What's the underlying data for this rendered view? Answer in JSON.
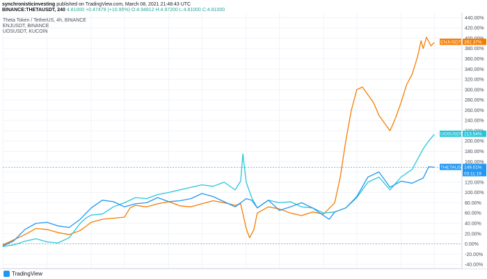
{
  "header": {
    "publisher": "synchronisticinvesting",
    "publish_line": "published on TradingView.com, March 08, 2021 21:48:43 UTC",
    "symbol_line": "BINANCE:THETAUSDT, 240",
    "last": "4.81000",
    "change": "+0.47479 (+10.95%)",
    "ohlc": "O:4.94812 H:4.97200 L:4.81000 C:4.81000"
  },
  "legend": {
    "main": "Theta Token / TetherUS, 4h, BINANCE",
    "line2": "ENJUSDT, BINANCE",
    "line3": "UOSUSDT, KUCOIN"
  },
  "footer": {
    "brand": "TradingView"
  },
  "colors": {
    "theta": "#2196f3",
    "enj": "#f57c00",
    "uos": "#26c6da",
    "zero": "#9598a1",
    "grid": "#f0f3fa"
  },
  "chart_data": {
    "type": "line",
    "x_labels": [
      "Feb",
      "4",
      "8",
      "11",
      "15",
      "18",
      "22",
      "25",
      "Mar",
      "4",
      "8",
      "11"
    ],
    "x_label_pos": [
      0,
      4,
      8,
      11,
      15,
      18,
      22,
      25,
      29,
      32,
      36,
      39
    ],
    "y_ticks": [
      "-40.00%",
      "-20.00%",
      "0.00%",
      "20.00%",
      "40.00%",
      "60.00%",
      "80.00%",
      "100.00%",
      "120.00%",
      "140.00%",
      "160.00%",
      "180.00%",
      "200.00%",
      "220.00%",
      "240.00%",
      "260.00%",
      "280.00%",
      "300.00%",
      "320.00%",
      "340.00%",
      "360.00%",
      "380.00%",
      "400.00%",
      "420.00%",
      "440.00%"
    ],
    "y_tick_values": [
      -40,
      -20,
      0,
      20,
      40,
      60,
      80,
      100,
      120,
      140,
      160,
      180,
      200,
      220,
      240,
      260,
      280,
      300,
      320,
      340,
      360,
      380,
      400,
      420,
      440
    ],
    "ylim": [
      -48,
      450
    ],
    "xlim": [
      0,
      41.5
    ],
    "series": [
      {
        "name": "ENJUSDT",
        "label": "392.37%",
        "last": 392.37,
        "x": [
          0,
          1,
          2,
          3,
          4,
          5,
          6,
          7,
          8,
          9,
          10,
          11,
          11.5,
          12,
          13,
          14,
          15,
          16,
          17,
          18,
          19,
          20,
          21,
          21.5,
          22,
          22.3,
          22.7,
          23,
          24,
          25,
          26,
          27,
          28,
          29,
          30,
          30.5,
          31,
          31.5,
          32,
          32.5,
          33,
          33.5,
          34,
          35,
          35.5,
          36,
          36.5,
          37,
          37.5,
          37.8,
          38,
          38.3,
          38.7,
          39
        ],
        "y": [
          -2,
          8,
          18,
          30,
          28,
          22,
          18,
          26,
          42,
          48,
          50,
          52,
          70,
          75,
          72,
          78,
          82,
          74,
          72,
          78,
          84,
          80,
          75,
          78,
          30,
          12,
          28,
          60,
          72,
          68,
          60,
          55,
          62,
          58,
          80,
          130,
          200,
          260,
          300,
          305,
          290,
          275,
          250,
          220,
          245,
          275,
          310,
          330,
          365,
          395,
          380,
          402,
          385,
          392
        ]
      },
      {
        "name": "UOSUSDT",
        "label": "213.54%",
        "last": 213.54,
        "x": [
          0,
          1,
          2,
          3,
          4,
          5,
          6,
          7,
          7.5,
          8,
          9,
          10,
          11,
          12,
          13,
          14,
          15,
          16,
          17,
          18,
          19,
          20,
          21,
          21.5,
          21.7,
          22,
          22.5,
          23,
          24,
          25,
          26,
          27,
          28,
          29,
          30,
          31,
          32,
          33,
          34,
          35,
          36,
          37,
          38,
          38.5,
          39
        ],
        "y": [
          -5,
          -2,
          5,
          10,
          4,
          2,
          12,
          40,
          50,
          56,
          58,
          72,
          80,
          90,
          88,
          96,
          100,
          105,
          110,
          115,
          112,
          120,
          105,
          122,
          175,
          120,
          90,
          70,
          85,
          80,
          82,
          72,
          70,
          60,
          62,
          70,
          90,
          120,
          130,
          105,
          130,
          145,
          185,
          200,
          213
        ]
      },
      {
        "name": "THETAUSDT",
        "label": "149.01%",
        "last": 149.01,
        "x": [
          0,
          1,
          2,
          3,
          4,
          5,
          6,
          7,
          8,
          9,
          10,
          11,
          12,
          13,
          14,
          15,
          16,
          17,
          18,
          19,
          20,
          21,
          22,
          22.5,
          23,
          24,
          25,
          26,
          27,
          28,
          29,
          29.5,
          30,
          31,
          32,
          33,
          34,
          35,
          36,
          37,
          38,
          38.5,
          39
        ],
        "y": [
          -4,
          6,
          28,
          40,
          42,
          35,
          32,
          48,
          70,
          85,
          82,
          72,
          78,
          80,
          90,
          82,
          84,
          88,
          98,
          92,
          82,
          72,
          88,
          85,
          70,
          85,
          65,
          72,
          80,
          70,
          55,
          48,
          62,
          70,
          92,
          130,
          140,
          110,
          122,
          118,
          128,
          150,
          149
        ]
      }
    ],
    "price_tag": "149.01%",
    "countdown": "03:11:19"
  }
}
